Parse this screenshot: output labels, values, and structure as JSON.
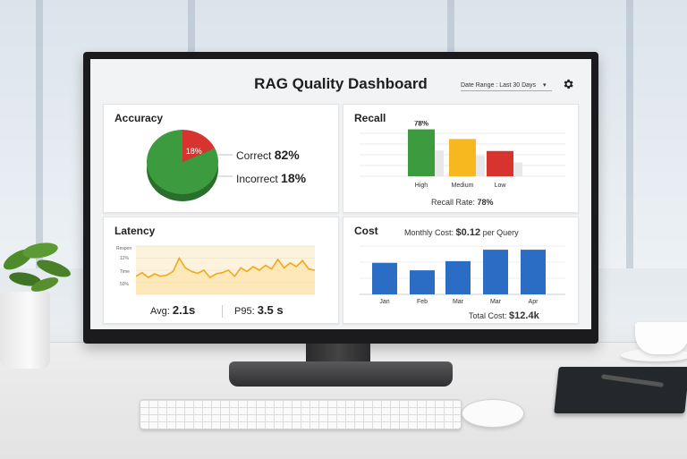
{
  "dashboard": {
    "title": "RAG Quality Dashboard",
    "date_range": "Date Range : Last 30 Days",
    "date_range_caret": "▾"
  },
  "accuracy": {
    "title": "Accuracy",
    "slice_label": "18%",
    "correct_label": "Correct",
    "correct_value": "82%",
    "incorrect_label": "Incorrect",
    "incorrect_value": "18%"
  },
  "recall": {
    "title": "Recall",
    "bar_label": "78%",
    "rate_label": "Recall Rate:",
    "rate_value": "78%"
  },
  "latency": {
    "title": "Latency",
    "axis_top": "Respon",
    "tick_12": "12%",
    "axis_mid": "Time",
    "tick_50": "50%",
    "avg_label": "Avg:",
    "avg_value": "2.1s",
    "p95_label": "P95:",
    "p95_value": "3.5 s"
  },
  "cost": {
    "title": "Cost",
    "monthly_label": "Monthly Cost:",
    "monthly_value": "$0.12",
    "monthly_unit": "per Query",
    "total_label": "Total Cost:",
    "total_value": "$12.4k"
  },
  "colors": {
    "green": "#3c9a3f",
    "red": "#d8342f",
    "yellow": "#f7b81f",
    "blue": "#2b6cc4",
    "line": "#f0a81d"
  },
  "chart_data": [
    {
      "type": "pie",
      "categories": [
        "Correct",
        "Incorrect"
      ],
      "values": [
        82,
        18
      ]
    },
    {
      "type": "bar",
      "categories": [
        "High",
        "Medium",
        "Low"
      ],
      "values": [
        78,
        62,
        42
      ]
    },
    {
      "type": "line",
      "values": [
        30,
        36,
        28,
        34,
        30,
        32,
        38,
        60,
        44,
        38,
        35,
        40,
        28,
        34,
        36,
        40,
        30,
        44,
        38,
        46,
        40,
        48,
        42,
        58,
        44,
        52,
        46,
        56,
        42,
        40
      ]
    },
    {
      "type": "bar",
      "categories": [
        "Jan",
        "Feb",
        "Mar",
        "Mar",
        "Apr"
      ],
      "values": [
        55,
        42,
        58,
        78,
        78
      ]
    }
  ]
}
